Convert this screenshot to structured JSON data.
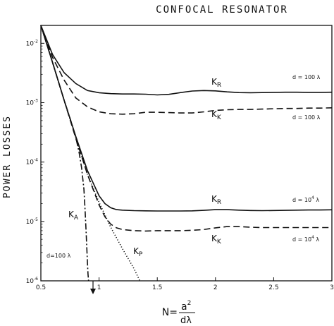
{
  "chart_data": {
    "type": "line",
    "title": "CONFOCAL RESONATOR",
    "ylabel": "POWER LOSSES",
    "xlabel_prefix": "N=",
    "xlabel_num": "a",
    "xlabel_exp": "2",
    "xlabel_den": "dλ",
    "x_scale": "linear",
    "y_scale": "log",
    "xlim": [
      0.5,
      3
    ],
    "ylim": [
      1e-06,
      0.02
    ],
    "x_ticks": [
      0.5,
      1,
      1.5,
      2,
      2.5,
      3
    ],
    "x_tick_labels": [
      "0.5",
      "1",
      "1.5",
      "2",
      "2.5",
      "3"
    ],
    "y_ticks": [
      0.01,
      0.001,
      0.0001,
      1e-05,
      1e-06
    ],
    "y_tick_labels": [
      {
        "base": "10",
        "exp": "-2"
      },
      {
        "base": "10",
        "exp": "-3"
      },
      {
        "base": "10",
        "exp": "-4"
      },
      {
        "base": "10",
        "exp": "-5"
      },
      {
        "base": "10",
        "exp": "-6"
      }
    ],
    "series": [
      {
        "name": "K_R",
        "name_main": "K",
        "name_sub": "R",
        "condition": "d = 100 λ",
        "style": "solid",
        "x": [
          0.5,
          0.6,
          0.7,
          0.8,
          0.9,
          1.0,
          1.1,
          1.2,
          1.3,
          1.4,
          1.5,
          1.6,
          1.7,
          1.8,
          1.9,
          2.0,
          2.1,
          2.2,
          2.3,
          2.4,
          2.5,
          2.6,
          2.7,
          2.8,
          2.9,
          3.0
        ],
        "y": [
          0.02,
          0.0065,
          0.0032,
          0.0021,
          0.0016,
          0.00147,
          0.00142,
          0.0014,
          0.0014,
          0.00139,
          0.00135,
          0.00138,
          0.00148,
          0.00157,
          0.0016,
          0.00158,
          0.00152,
          0.00148,
          0.00147,
          0.00148,
          0.00149,
          0.0015,
          0.0015,
          0.00149,
          0.00149,
          0.0015
        ]
      },
      {
        "name": "K_K",
        "name_main": "K",
        "name_sub": "K",
        "condition": "d = 100 λ",
        "style": "dashed",
        "x": [
          0.5,
          0.6,
          0.7,
          0.8,
          0.9,
          1.0,
          1.1,
          1.2,
          1.3,
          1.4,
          1.5,
          1.6,
          1.7,
          1.8,
          1.9,
          2.0,
          2.1,
          2.2,
          2.3,
          2.4,
          2.5,
          2.6,
          2.7,
          2.8,
          2.9,
          3.0
        ],
        "y": [
          0.02,
          0.0058,
          0.0024,
          0.0012,
          0.00085,
          0.0007,
          0.00065,
          0.00064,
          0.00065,
          0.00069,
          0.00069,
          0.00068,
          0.00067,
          0.00067,
          0.0007,
          0.00074,
          0.00076,
          0.00077,
          0.00077,
          0.00078,
          0.00079,
          0.0008,
          0.0008,
          0.00081,
          0.00081,
          0.00082
        ]
      },
      {
        "name": "K_R",
        "name_main": "K",
        "name_sub": "R",
        "condition": "d = 10⁴ λ",
        "style": "solid",
        "x": [
          0.5,
          0.6,
          0.7,
          0.8,
          0.9,
          1.0,
          1.05,
          1.1,
          1.15,
          1.2,
          1.3,
          1.4,
          1.5,
          1.6,
          1.7,
          1.8,
          1.9,
          2.0,
          2.1,
          2.2,
          2.3,
          2.4,
          2.5,
          2.6,
          2.7,
          2.8,
          2.9,
          3.0
        ],
        "y": [
          0.02,
          0.0048,
          0.0011,
          0.00027,
          7.2e-05,
          2.7e-05,
          2e-05,
          1.7e-05,
          1.58e-05,
          1.55e-05,
          1.52e-05,
          1.51e-05,
          1.5e-05,
          1.5e-05,
          1.5e-05,
          1.51e-05,
          1.54e-05,
          1.58e-05,
          1.58e-05,
          1.55e-05,
          1.53e-05,
          1.52e-05,
          1.53e-05,
          1.54e-05,
          1.55e-05,
          1.56e-05,
          1.56e-05,
          1.57e-05
        ]
      },
      {
        "name": "K_K",
        "name_main": "K",
        "name_sub": "K",
        "condition": "d = 10⁴ λ",
        "style": "dashed",
        "x": [
          0.5,
          0.6,
          0.7,
          0.8,
          0.9,
          1.0,
          1.05,
          1.1,
          1.15,
          1.2,
          1.3,
          1.4,
          1.5,
          1.6,
          1.7,
          1.8,
          1.9,
          2.0,
          2.1,
          2.2,
          2.3,
          2.4,
          2.5,
          2.6,
          2.7,
          2.8,
          2.9,
          3.0
        ],
        "y": [
          0.02,
          0.0048,
          0.0011,
          0.00025,
          6.2e-05,
          1.9e-05,
          1.2e-05,
          9e-06,
          7.8e-06,
          7.3e-06,
          7e-06,
          6.9e-06,
          7e-06,
          7e-06,
          7e-06,
          7.1e-06,
          7.3e-06,
          7.8e-06,
          8.2e-06,
          8.2e-06,
          8e-06,
          7.9e-06,
          7.9e-06,
          7.9e-06,
          7.9e-06,
          7.9e-06,
          7.9e-06,
          7.9e-06
        ]
      },
      {
        "name": "K_A",
        "name_main": "K",
        "name_sub": "A",
        "condition": "d = 100 λ",
        "style": "dashdot",
        "x": [
          0.5,
          0.6,
          0.7,
          0.75,
          0.8,
          0.83,
          0.85,
          0.87,
          0.88,
          0.89,
          0.9,
          0.905,
          0.91
        ],
        "y": [
          0.02,
          0.0048,
          0.0011,
          0.00055,
          0.00026,
          0.00014,
          8e-05,
          3.5e-05,
          1.5e-05,
          6e-06,
          2e-06,
          1.3e-06,
          1e-06
        ]
      },
      {
        "name": "K_P",
        "name_main": "K",
        "name_sub": "P",
        "condition": "",
        "style": "dotted",
        "x": [
          0.5,
          0.6,
          0.7,
          0.8,
          0.9,
          1.0,
          1.1,
          1.2,
          1.3,
          1.35
        ],
        "y": [
          0.02,
          0.0048,
          0.0011,
          0.00026,
          6.2e-05,
          2.1e-05,
          8e-06,
          3.5e-06,
          1.6e-06,
          1e-06
        ]
      }
    ],
    "annotations": {
      "kr_top": {
        "main": "K",
        "sub": "R",
        "cond": "d = 100 λ"
      },
      "kk_top": {
        "main": "K",
        "sub": "K",
        "cond": "d = 100 λ"
      },
      "kr_bot": {
        "main": "K",
        "sub": "R",
        "cond_prefix": "d = 10",
        "cond_exp": "4",
        "cond_suffix": " λ"
      },
      "kk_bot": {
        "main": "K",
        "sub": "K",
        "cond_prefix": "d = 10",
        "cond_exp": "4",
        "cond_suffix": " λ"
      },
      "ka": {
        "main": "K",
        "sub": "A"
      },
      "kp": {
        "main": "K",
        "sub": "P"
      },
      "d100": "d=100 λ"
    },
    "grid": false,
    "legend": "inline labels"
  }
}
